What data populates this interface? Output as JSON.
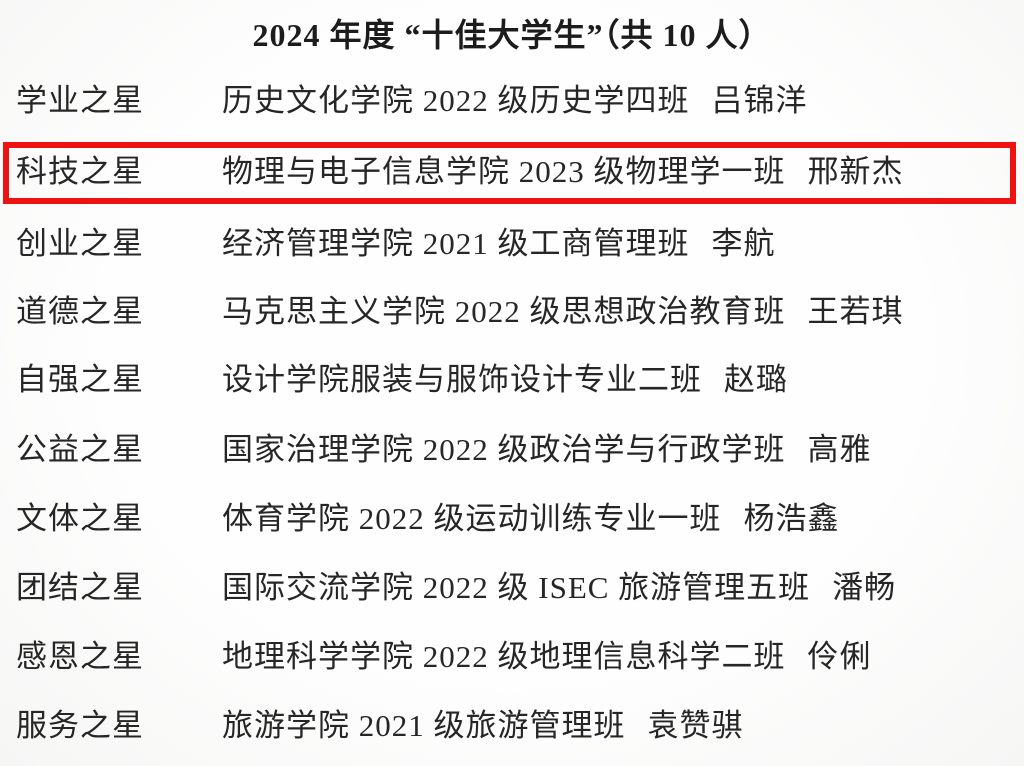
{
  "document": {
    "title": "2024 年度 “十佳大学生”（共 10 人）",
    "total_count_shown": "10",
    "highlight": {
      "color": "#ee1211",
      "highlighted_row_index": 1,
      "purpose": "red-box-annotation"
    },
    "rows": [
      {
        "category": "学业之星",
        "class_info": "历史文化学院 2022 级历史学四班",
        "name": "吕锦洋",
        "highlighted": false
      },
      {
        "category": "科技之星",
        "class_info": "物理与电子信息学院 2023 级物理学一班",
        "name": "邢新杰",
        "highlighted": true
      },
      {
        "category": "创业之星",
        "class_info": "经济管理学院 2021 级工商管理班",
        "name": "李航",
        "highlighted": false
      },
      {
        "category": "道德之星",
        "class_info": "马克思主义学院 2022 级思想政治教育班",
        "name": "王若琪",
        "highlighted": false
      },
      {
        "category": "自强之星",
        "class_info": "设计学院服装与服饰设计专业二班",
        "name": "赵璐",
        "highlighted": false
      },
      {
        "category": "公益之星",
        "class_info": "国家治理学院 2022 级政治学与行政学班",
        "name": "高雅",
        "highlighted": false
      },
      {
        "category": "文体之星",
        "class_info": "体育学院 2022 级运动训练专业一班",
        "name": "杨浩鑫",
        "highlighted": false
      },
      {
        "category": "团结之星",
        "class_info": "国际交流学院 2022 级 ISEC 旅游管理五班",
        "name": "潘畅",
        "highlighted": false
      },
      {
        "category": "感恩之星",
        "class_info": "地理科学学院 2022 级地理信息科学二班",
        "name": "伶俐",
        "highlighted": false
      },
      {
        "category": "服务之星",
        "class_info": "旅游学院 2021 级旅游管理班",
        "name": "袁赞骐",
        "highlighted": false
      }
    ]
  }
}
